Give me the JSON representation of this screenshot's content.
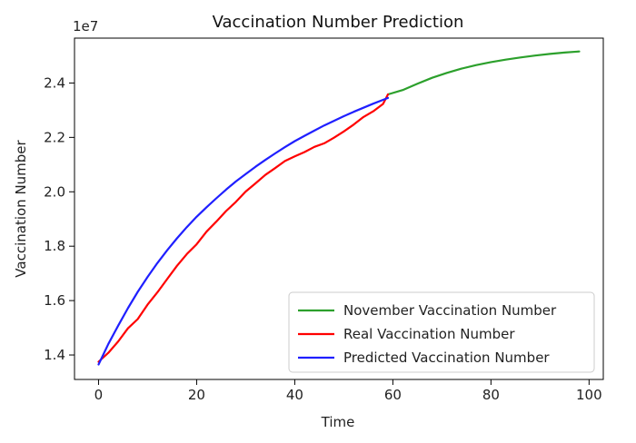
{
  "chart_data": {
    "type": "line",
    "title": "Vaccination Number Prediction",
    "xlabel": "Time",
    "ylabel": "Vaccination Number",
    "y_offset_label": "1e7",
    "xlim": [
      -4.9,
      102.9
    ],
    "ylim": [
      1.31,
      2.565
    ],
    "x_ticks": [
      0,
      20,
      40,
      60,
      80,
      100
    ],
    "y_ticks": [
      1.4,
      1.6,
      1.8,
      2.0,
      2.2,
      2.4
    ],
    "y_tick_labels": [
      "1.4",
      "1.6",
      "1.8",
      "2.0",
      "2.2",
      "2.4"
    ],
    "grid": false,
    "legend_position": "lower-right",
    "series": [
      {
        "name": "November Vaccination Number",
        "color": "#2ca02c",
        "x": [
          59,
          62,
          65,
          68,
          71,
          74,
          77,
          80,
          83,
          86,
          89,
          92,
          95,
          98
        ],
        "y": [
          2.358,
          2.374,
          2.397,
          2.419,
          2.437,
          2.453,
          2.466,
          2.477,
          2.486,
          2.494,
          2.501,
          2.507,
          2.512,
          2.516
        ]
      },
      {
        "name": "Real Vaccination Number",
        "color": "#ff0000",
        "x": [
          0,
          2,
          4,
          6,
          8,
          10,
          12,
          14,
          16,
          18,
          20,
          22,
          24,
          26,
          28,
          30,
          32,
          34,
          36,
          38,
          40,
          42,
          44,
          46,
          48,
          50,
          52,
          54,
          56,
          58,
          59
        ],
        "y": [
          1.375,
          1.408,
          1.45,
          1.498,
          1.532,
          1.585,
          1.63,
          1.679,
          1.728,
          1.771,
          1.807,
          1.853,
          1.89,
          1.929,
          1.963,
          2.001,
          2.031,
          2.062,
          2.087,
          2.113,
          2.13,
          2.146,
          2.165,
          2.178,
          2.199,
          2.222,
          2.247,
          2.275,
          2.296,
          2.323,
          2.358
        ]
      },
      {
        "name": "Predicted Vaccination Number",
        "color": "#1f1fff",
        "x": [
          0,
          2,
          4,
          6,
          8,
          10,
          12,
          14,
          16,
          18,
          20,
          22,
          24,
          26,
          28,
          30,
          32,
          34,
          36,
          38,
          40,
          42,
          44,
          46,
          48,
          50,
          52,
          54,
          56,
          58,
          59
        ],
        "y": [
          1.365,
          1.441,
          1.508,
          1.572,
          1.632,
          1.687,
          1.738,
          1.785,
          1.829,
          1.87,
          1.908,
          1.943,
          1.976,
          2.008,
          2.038,
          2.065,
          2.092,
          2.117,
          2.141,
          2.164,
          2.186,
          2.206,
          2.225,
          2.244,
          2.261,
          2.278,
          2.294,
          2.309,
          2.324,
          2.338,
          2.345
        ]
      }
    ]
  }
}
